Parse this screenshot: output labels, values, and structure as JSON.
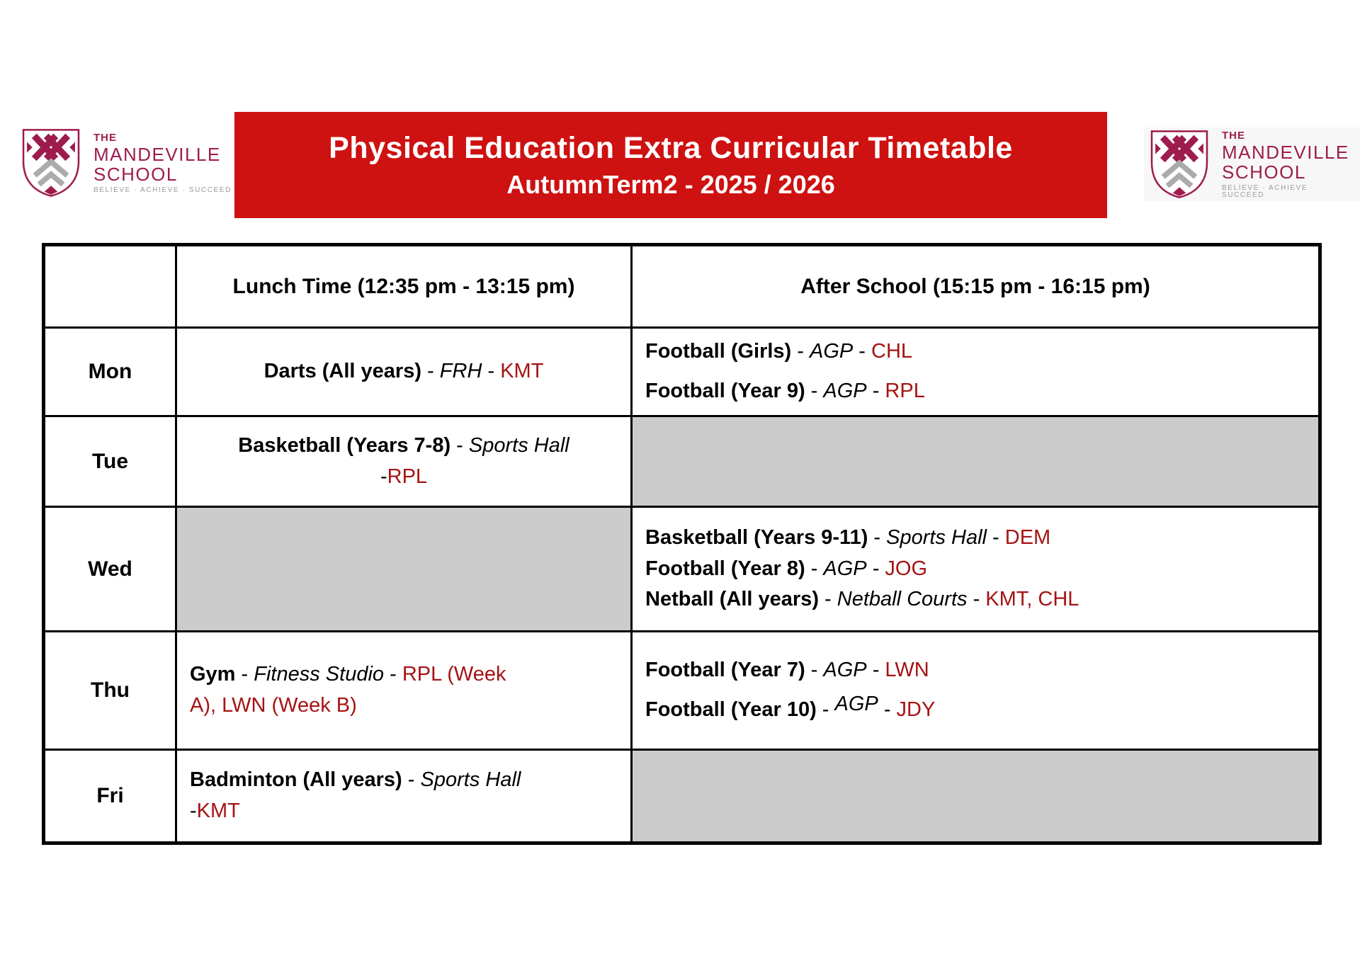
{
  "banner": {
    "title": "Physical Education Extra Curricular Timetable",
    "subtitle": "AutumnTerm2 - 2025 / 2026"
  },
  "logo": {
    "the": "THE",
    "name": "MANDEVILLE",
    "school": "SCHOOL",
    "tagline": "BELIEVE · ACHIEVE · SUCCEED"
  },
  "colors": {
    "banner_red": "#CE1111",
    "staff_red": "#A61313",
    "empty_gray": "#CCCCCC",
    "logo_maroon": "#9E1C4D",
    "logo_gray": "#ABABAB"
  },
  "table": {
    "columns": [
      "",
      "Lunch Time (12:35 pm - 13:15 pm)",
      "After School (15:15 pm - 16:15 pm)"
    ],
    "rows": [
      {
        "day": "Mon",
        "lunch": {
          "empty": false,
          "align": "center",
          "spread": false,
          "lines": [
            [
              {
                "style": "bold",
                "text": "Darts (All years)"
              },
              {
                "style": "plain",
                "text": " - "
              },
              {
                "style": "italic",
                "text": "FRH"
              },
              {
                "style": "plain",
                "text": " - "
              },
              {
                "style": "staff",
                "text": "KMT"
              }
            ]
          ]
        },
        "after": {
          "empty": false,
          "align": "left",
          "spread": true,
          "lines": [
            [
              {
                "style": "bold",
                "text": "Football (Girls)"
              },
              {
                "style": "plain",
                "text": " - "
              },
              {
                "style": "italic",
                "text": "AGP"
              },
              {
                "style": "plain",
                "text": " - "
              },
              {
                "style": "staff",
                "text": "CHL"
              }
            ],
            [
              {
                "style": "bold",
                "text": "Football (Year 9)"
              },
              {
                "style": "plain",
                "text": " - "
              },
              {
                "style": "italic",
                "text": "AGP"
              },
              {
                "style": "plain",
                "text": " - "
              },
              {
                "style": "staff",
                "text": "RPL"
              }
            ]
          ]
        }
      },
      {
        "day": "Tue",
        "lunch": {
          "empty": false,
          "align": "center",
          "spread": false,
          "lines": [
            [
              {
                "style": "bold",
                "text": "Basketball (Years 7-8)"
              },
              {
                "style": "plain",
                "text": " - "
              },
              {
                "style": "italic",
                "text": "Sports Hall"
              }
            ],
            [
              {
                "style": "plain",
                "text": "-"
              },
              {
                "style": "staff",
                "text": "RPL"
              }
            ]
          ]
        },
        "after": {
          "empty": true,
          "align": "left",
          "spread": false,
          "lines": []
        }
      },
      {
        "day": "Wed",
        "lunch": {
          "empty": true,
          "align": "left",
          "spread": false,
          "lines": []
        },
        "after": {
          "empty": false,
          "align": "left",
          "spread": false,
          "lines": [
            [
              {
                "style": "bold",
                "text": "Basketball (Years 9-11)"
              },
              {
                "style": "plain",
                "text": " - "
              },
              {
                "style": "italic",
                "text": "Sports Hall"
              },
              {
                "style": "plain",
                "text": " - "
              },
              {
                "style": "staff",
                "text": "DEM"
              }
            ],
            [
              {
                "style": "bold",
                "text": "Football (Year 8)"
              },
              {
                "style": "plain",
                "text": " - "
              },
              {
                "style": "italic",
                "text": "AGP"
              },
              {
                "style": "plain",
                "text": " - "
              },
              {
                "style": "staff",
                "text": "JOG"
              }
            ],
            [
              {
                "style": "bold",
                "text": "Netball (All years)"
              },
              {
                "style": "plain",
                "text": " - "
              },
              {
                "style": "italic",
                "text": "Netball Courts"
              },
              {
                "style": "plain",
                "text": " - "
              },
              {
                "style": "staff",
                "text": "KMT, CHL"
              }
            ]
          ]
        }
      },
      {
        "day": "Thu",
        "lunch": {
          "empty": false,
          "align": "left",
          "spread": false,
          "lines": [
            [
              {
                "style": "bold",
                "text": "Gym"
              },
              {
                "style": "plain",
                "text": " - "
              },
              {
                "style": "italic",
                "text": "Fitness Studio"
              },
              {
                "style": "plain",
                "text": " - "
              },
              {
                "style": "staff",
                "text": "RPL (Week"
              }
            ],
            [
              {
                "style": "staff",
                "text": "A), LWN (Week B)"
              }
            ]
          ]
        },
        "after": {
          "empty": false,
          "align": "left",
          "spread": true,
          "lines": [
            [
              {
                "style": "bold",
                "text": "Football (Year 7)"
              },
              {
                "style": "plain",
                "text": " - "
              },
              {
                "style": "italic",
                "text": "AGP"
              },
              {
                "style": "plain",
                "text": " - "
              },
              {
                "style": "staff",
                "text": "LWN"
              }
            ],
            [
              {
                "style": "bold",
                "text": "Football (Year 10)"
              },
              {
                "style": "plain",
                "text": " - "
              },
              {
                "style": "italic-raised",
                "text": "AGP"
              },
              {
                "style": "plain",
                "text": " - "
              },
              {
                "style": "staff",
                "text": "JDY"
              }
            ]
          ]
        }
      },
      {
        "day": "Fri",
        "lunch": {
          "empty": false,
          "align": "left",
          "spread": false,
          "lines": [
            [
              {
                "style": "bold",
                "text": "Badminton (All years)"
              },
              {
                "style": "plain",
                "text": " - "
              },
              {
                "style": "italic",
                "text": "Sports Hall"
              }
            ],
            [
              {
                "style": "plain",
                "text": "-"
              },
              {
                "style": "staff",
                "text": "KMT"
              }
            ]
          ]
        },
        "after": {
          "empty": true,
          "align": "left",
          "spread": false,
          "lines": []
        }
      }
    ]
  }
}
